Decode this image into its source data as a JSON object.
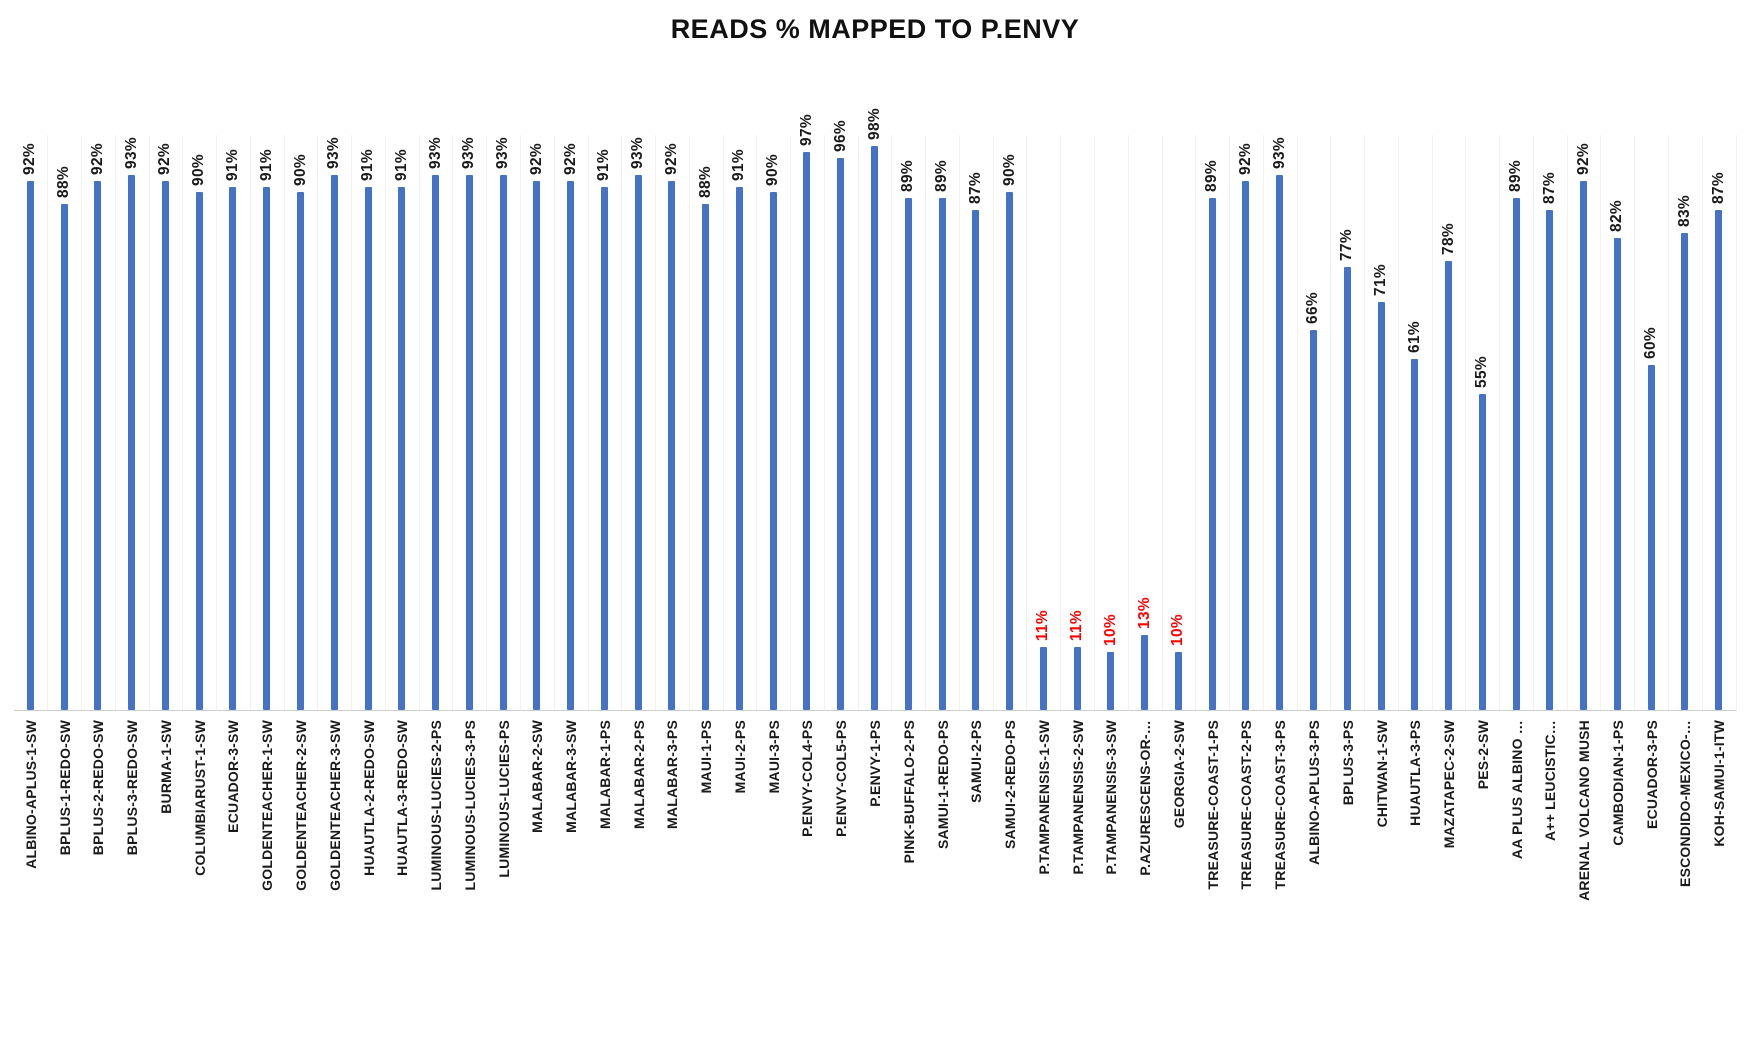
{
  "chart_data": {
    "type": "bar",
    "title": "READS % MAPPED TO P.ENVY",
    "xlabel": "",
    "ylabel": "",
    "ylim": [
      0,
      100
    ],
    "legend": "none",
    "grid": "faint-vertical-category-separators",
    "bar_color": "#4472C4",
    "value_label_color": "#1a1a1a",
    "low_value_label_color": "#FF0000",
    "low_value_threshold": 20,
    "value_suffix": "%",
    "categories": [
      "ALBINO-APLUS-1-SW",
      "BPLUS-1-REDO-SW",
      "BPLUS-2-REDO-SW",
      "BPLUS-3-REDO-SW",
      "BURMA-1-SW",
      "COLUMBIARUST-1-SW",
      "ECUADOR-3-SW",
      "GOLDENTEACHER-1-SW",
      "GOLDENTEACHER-2-SW",
      "GOLDENTEACHER-3-SW",
      "HUAUTLA-2-REDO-SW",
      "HUAUTLA-3-REDO-SW",
      "LUMINOUS-LUCIES-2-PS",
      "LUMINOUS-LUCIES-3-PS",
      "LUMINOUS-LUCIES-PS",
      "MALABAR-2-SW",
      "MALABAR-3-SW",
      "MALABAR-1-PS",
      "MALABAR-2-PS",
      "MALABAR-3-PS",
      "MAUI-1-PS",
      "MAUI-2-PS",
      "MAUI-3-PS",
      "P.ENVY-COL4-PS",
      "P.ENVY-COL5-PS",
      "P.ENVY-1-PS",
      "PINK-BUFFALO-2-PS",
      "SAMUI-1-REDO-PS",
      "SAMUI-2-PS",
      "SAMUI-2-REDO-PS",
      "P.TAMPANENSIS-1-SW",
      "P.TAMPANENSIS-2-SW",
      "P.TAMPANENSIS-3-SW",
      "P.AZURESCENS-OR-…",
      "GEORGIA-2-SW",
      "TREASURE-COAST-1-PS",
      "TREASURE-COAST-2-PS",
      "TREASURE-COAST-3-PS",
      "ALBINO-APLUS-3-PS",
      "BPLUS-3-PS",
      "CHITWAN-1-SW",
      "HUAUTLA-3-PS",
      "MAZATAPEC-2-SW",
      "PES-2-SW",
      "AA PLUS ALBINO …",
      "A++ LEUCISTIC…",
      "ARENAL VOLCANO MUSH",
      "CAMBODIAN-1-PS",
      "ECUADOR-3-PS",
      "ESCONDIDO-MEXICO-…",
      "KOH-SAMUI-1-ITW"
    ],
    "values": [
      92,
      88,
      92,
      93,
      92,
      90,
      91,
      91,
      90,
      93,
      91,
      91,
      93,
      93,
      93,
      92,
      92,
      91,
      93,
      92,
      88,
      91,
      90,
      97,
      96,
      98,
      89,
      89,
      87,
      90,
      11,
      11,
      10,
      13,
      10,
      89,
      92,
      93,
      66,
      77,
      71,
      61,
      78,
      55,
      89,
      87,
      92,
      82,
      60,
      83,
      87
    ]
  }
}
